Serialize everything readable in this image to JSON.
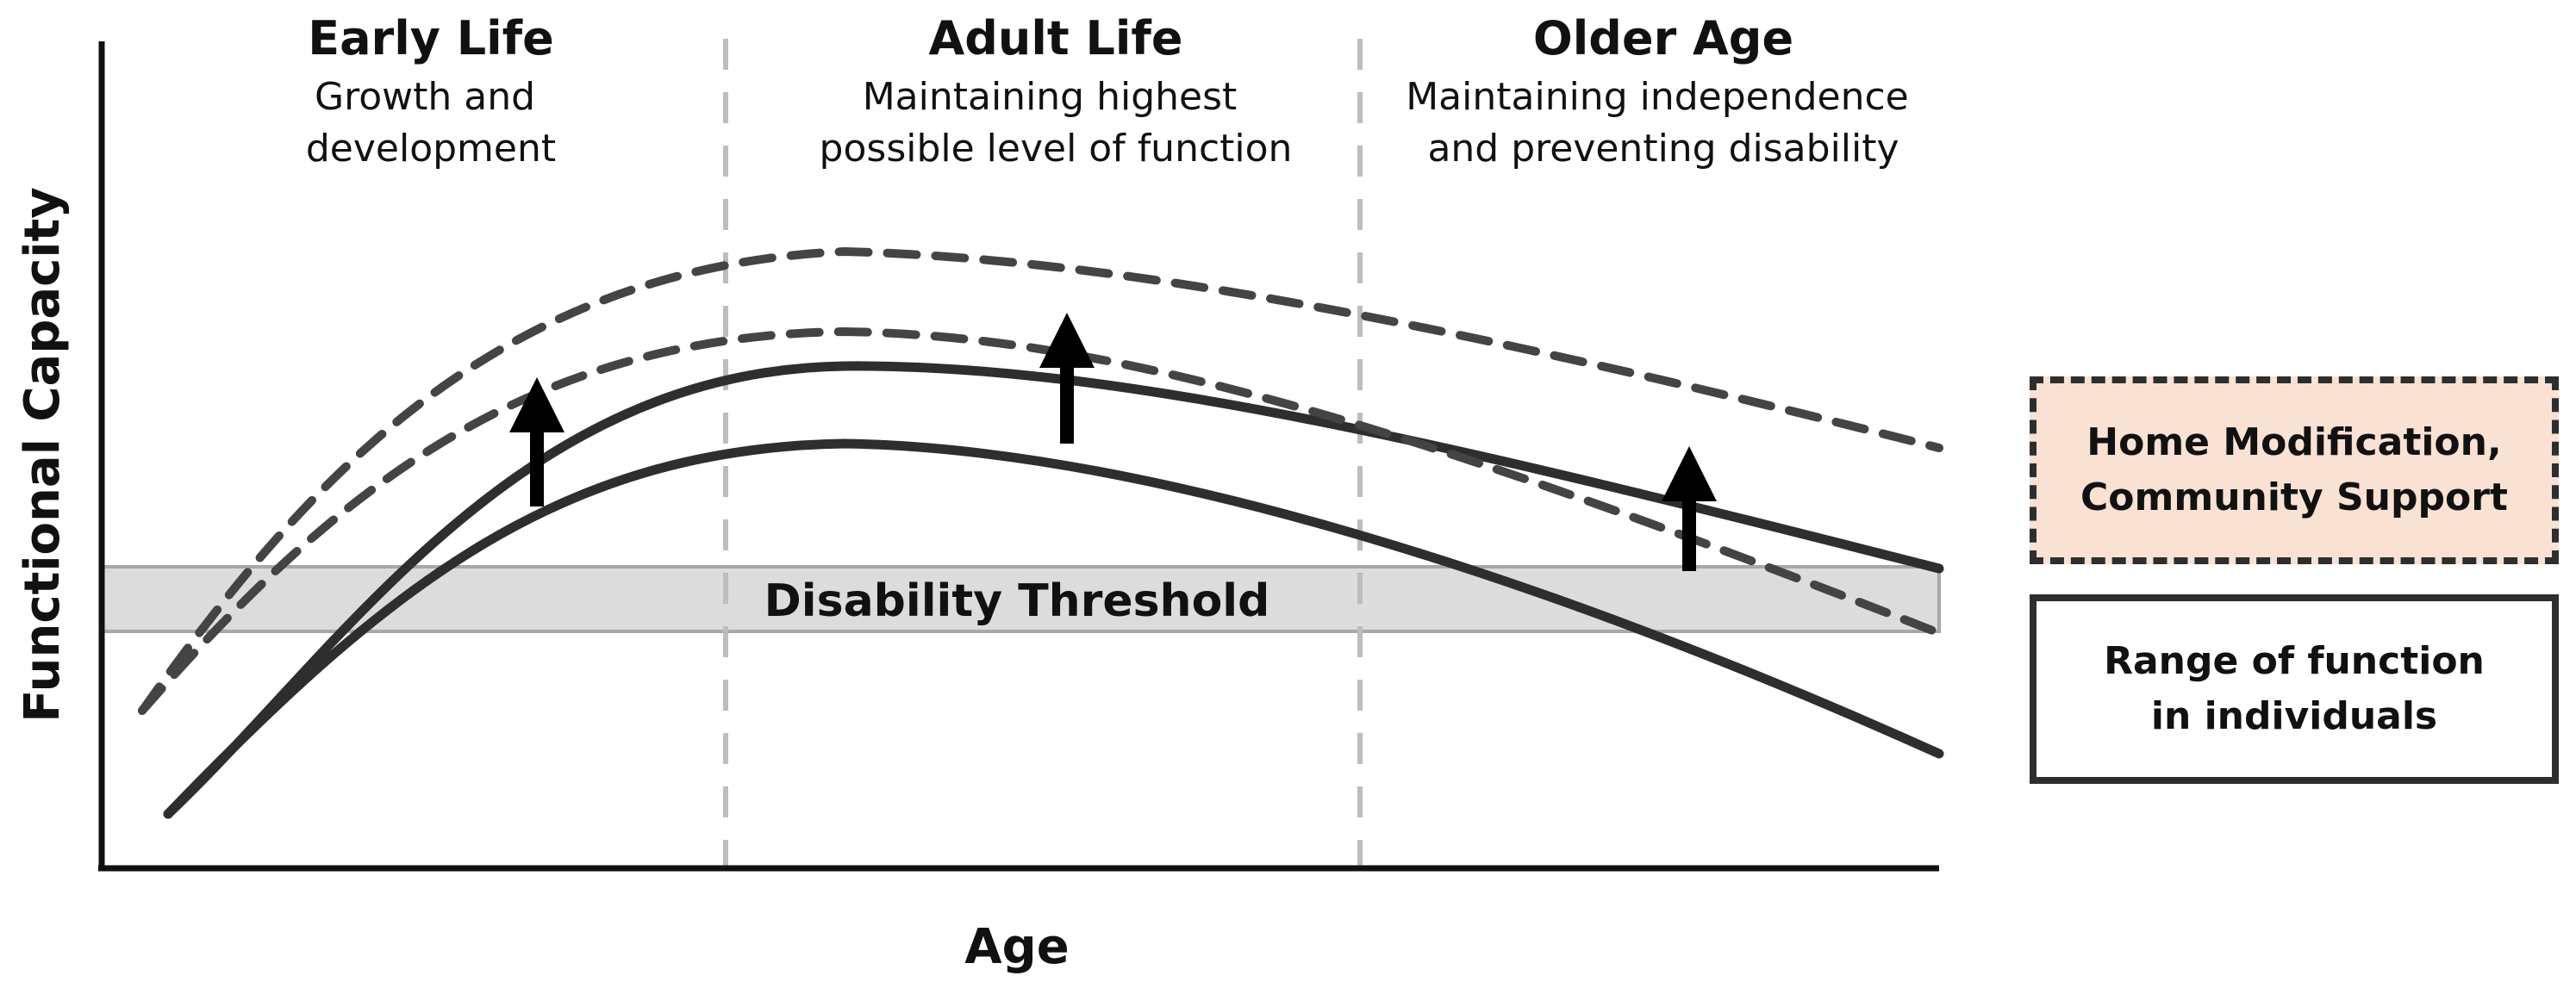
{
  "colors": {
    "curve": "#2e2e2e",
    "dashed_curve": "#444444",
    "threshold_band": "#dcdcdc",
    "threshold_border": "#a8a8a8",
    "phase_divider": "#bdbdbd",
    "intervention_fill": "#f9e1d4",
    "arrow": "#000000"
  },
  "axes": {
    "y_label": "Functional Capacity",
    "x_label": "Age"
  },
  "phases": [
    {
      "title": "Early Life",
      "description": [
        "Growth and",
        "development"
      ]
    },
    {
      "title": "Adult Life",
      "description": [
        "Maintaining highest",
        "possible level of function"
      ]
    },
    {
      "title": "Older Age",
      "description": [
        "Maintaining independence",
        "and preventing disability"
      ]
    }
  ],
  "threshold": {
    "label": "Disability Threshold"
  },
  "legend": {
    "intervention": {
      "lines": [
        "Home Modification,",
        "Community Support"
      ],
      "line_style": "dashed"
    },
    "range": {
      "lines": [
        "Range of function",
        "in individuals"
      ],
      "line_style": "solid"
    }
  }
}
